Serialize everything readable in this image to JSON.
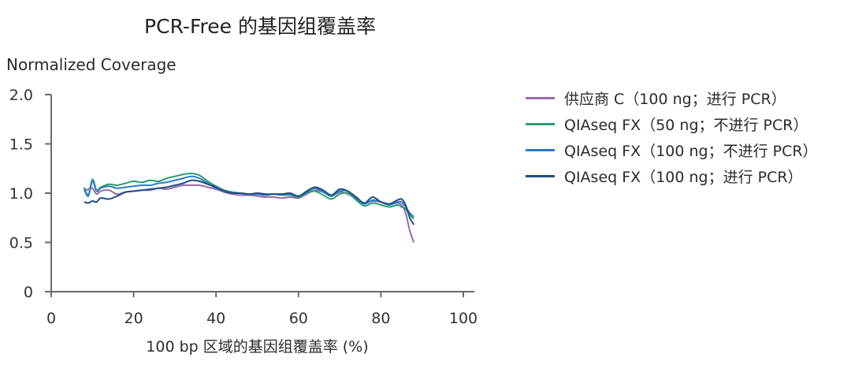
{
  "chart_data": {
    "type": "line",
    "title": "PCR-Free 的基因组覆盖率",
    "xlabel": "100 bp 区域的基因组覆盖率 (%)",
    "ylabel": "Normalized Coverage",
    "xlim": [
      0,
      100
    ],
    "ylim": [
      0,
      2.0
    ],
    "x_ticks": [
      "0",
      "20",
      "40",
      "60",
      "80",
      "100"
    ],
    "y_ticks": [
      "0",
      "0.5",
      "1.0",
      "1.5",
      "2.0"
    ],
    "grid": false,
    "legend_position": "right",
    "x": [
      8,
      9,
      10,
      11,
      12,
      14,
      16,
      18,
      20,
      22,
      24,
      26,
      28,
      30,
      32,
      34,
      36,
      38,
      40,
      42,
      44,
      46,
      48,
      50,
      52,
      54,
      56,
      58,
      60,
      62,
      64,
      66,
      68,
      70,
      72,
      74,
      76,
      78,
      80,
      82,
      84,
      85,
      86,
      87,
      88
    ],
    "series": [
      {
        "name": "供应商 C（100 ng；进行 PCR）",
        "color": "#9b6aa8",
        "values": [
          1.02,
          1.04,
          1.05,
          0.99,
          1.02,
          1.03,
          0.99,
          1.01,
          1.02,
          1.03,
          1.03,
          1.05,
          1.04,
          1.06,
          1.08,
          1.08,
          1.08,
          1.06,
          1.04,
          1.01,
          0.99,
          0.98,
          0.98,
          0.97,
          0.96,
          0.96,
          0.95,
          0.96,
          0.95,
          0.99,
          1.03,
          1.01,
          0.97,
          1.01,
          0.99,
          0.94,
          0.9,
          0.92,
          0.91,
          0.89,
          0.9,
          0.88,
          0.8,
          0.62,
          0.5
        ]
      },
      {
        "name": "QIAseq FX（50 ng；不进行 PCR）",
        "color": "#2e9e6e",
        "values": [
          1.06,
          0.98,
          1.14,
          1.03,
          1.06,
          1.09,
          1.08,
          1.1,
          1.12,
          1.11,
          1.13,
          1.12,
          1.15,
          1.17,
          1.19,
          1.2,
          1.18,
          1.12,
          1.07,
          1.03,
          1.01,
          1.0,
          0.99,
          0.99,
          0.98,
          0.99,
          0.98,
          0.98,
          0.96,
          1.0,
          1.02,
          0.98,
          0.94,
          0.99,
          1.0,
          0.93,
          0.87,
          0.9,
          0.88,
          0.86,
          0.88,
          0.86,
          0.84,
          0.78,
          0.74
        ]
      },
      {
        "name": "QIAseq FX（100 ng；不进行 PCR）",
        "color": "#2a7cc7",
        "values": [
          1.04,
          0.97,
          1.12,
          1.02,
          1.05,
          1.07,
          1.05,
          1.06,
          1.07,
          1.08,
          1.08,
          1.1,
          1.11,
          1.13,
          1.15,
          1.17,
          1.15,
          1.1,
          1.05,
          1.02,
          1.0,
          1.0,
          0.99,
          0.99,
          0.98,
          0.99,
          0.99,
          0.99,
          0.97,
          1.01,
          1.05,
          1.01,
          0.97,
          1.02,
          1.02,
          0.95,
          0.89,
          0.93,
          0.91,
          0.88,
          0.91,
          0.91,
          0.86,
          0.8,
          0.76
        ]
      },
      {
        "name": "QIAseq FX（100 ng；进行 PCR）",
        "color": "#1f4e85",
        "values": [
          0.91,
          0.9,
          0.92,
          0.91,
          0.95,
          0.94,
          0.97,
          1.01,
          1.02,
          1.03,
          1.04,
          1.05,
          1.06,
          1.08,
          1.1,
          1.13,
          1.12,
          1.09,
          1.06,
          1.02,
          1.0,
          1.0,
          0.99,
          1.0,
          0.99,
          0.99,
          0.99,
          1.0,
          0.97,
          1.02,
          1.06,
          1.03,
          0.98,
          1.04,
          1.02,
          0.96,
          0.9,
          0.96,
          0.91,
          0.89,
          0.93,
          0.94,
          0.88,
          0.75,
          0.68
        ]
      }
    ]
  }
}
